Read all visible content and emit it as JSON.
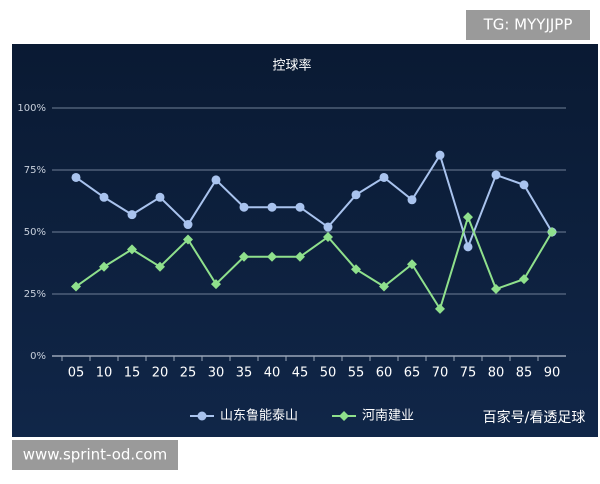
{
  "chart_data": {
    "type": "line",
    "title": "控球率",
    "categories": [
      "05",
      "10",
      "15",
      "20",
      "25",
      "30",
      "35",
      "40",
      "45",
      "50",
      "55",
      "60",
      "65",
      "70",
      "75",
      "80",
      "85",
      "90"
    ],
    "series": [
      {
        "name": "山东鲁能泰山",
        "color": "#a9c3ee",
        "marker": "circle",
        "values": [
          72,
          64,
          57,
          64,
          53,
          71,
          60,
          60,
          60,
          52,
          65,
          72,
          63,
          81,
          44,
          73,
          69,
          50
        ]
      },
      {
        "name": "河南建业",
        "color": "#8fe08c",
        "marker": "diamond",
        "values": [
          28,
          36,
          43,
          36,
          47,
          29,
          40,
          40,
          40,
          48,
          35,
          28,
          37,
          19,
          56,
          27,
          31,
          50
        ]
      }
    ],
    "ylim": [
      0,
      100
    ],
    "yticks": [
      {
        "value": 0,
        "label": "0%"
      },
      {
        "value": 25,
        "label": "25%"
      },
      {
        "value": 50,
        "label": "50%"
      },
      {
        "value": 75,
        "label": "75%"
      },
      {
        "value": 100,
        "label": "100%"
      }
    ],
    "grid": true,
    "legend": "bottom"
  },
  "watermarks": {
    "top": "TG: MYYJJPP",
    "source": "百家号/看透足球",
    "bottom": "www.sprint-od.com"
  }
}
